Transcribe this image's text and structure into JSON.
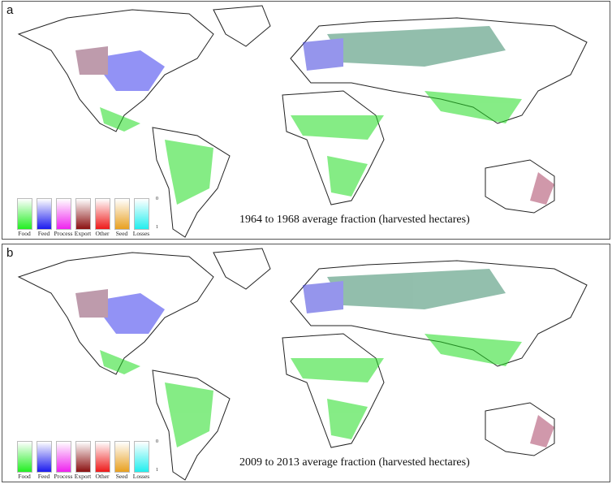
{
  "panels": [
    {
      "label": "a",
      "caption": "1964 to 1968 average fraction (harvested hectares)"
    },
    {
      "label": "b",
      "caption": "2009 to 2013 average fraction (harvested hectares)"
    }
  ],
  "legend": {
    "scale_min": "0",
    "scale_max": "1",
    "items": [
      {
        "label": "Food",
        "color": "#22ee22"
      },
      {
        "label": "Feed",
        "color": "#1a1aee"
      },
      {
        "label": "Process",
        "color": "#ee22ee"
      },
      {
        "label": "Export",
        "color": "#8b1010"
      },
      {
        "label": "Other",
        "color": "#ee1a1a"
      },
      {
        "label": "Seed",
        "color": "#e8a020"
      },
      {
        "label": "Losses",
        "color": "#22eeee"
      }
    ]
  }
}
